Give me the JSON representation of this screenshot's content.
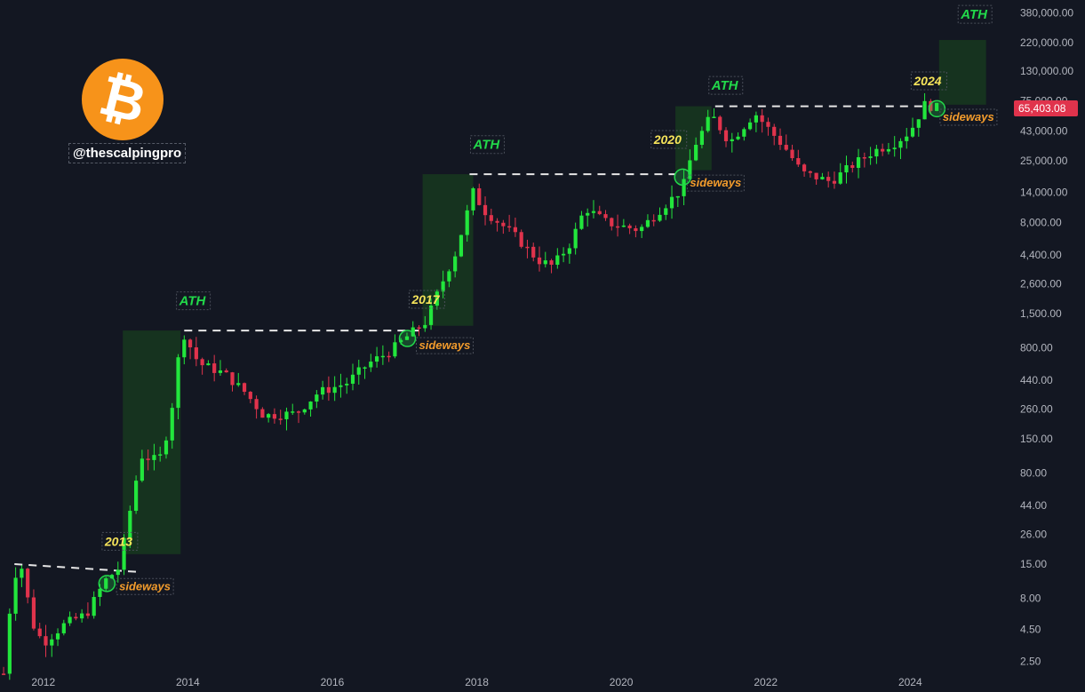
{
  "brand": {
    "handle": "@thescalpingpro",
    "logo_glyph": "₿",
    "logo_color": "#f7931a"
  },
  "colors": {
    "background": "#131722",
    "up": "#22e63c",
    "down": "#e0334c",
    "ath_zone": "#16331f",
    "year_label": "#f5e35a",
    "ath_label": "#22d84a",
    "sideways_label": "#f39c2c",
    "price_badge": "#e0334c"
  },
  "chart_data": {
    "type": "candlestick",
    "scale": "log",
    "x_range": [
      2011.4,
      2025.3
    ],
    "ylim": [
      1.6,
      480000
    ],
    "x_ticks": [
      {
        "value": 2012,
        "label": "2012"
      },
      {
        "value": 2014,
        "label": "2014"
      },
      {
        "value": 2016,
        "label": "2016"
      },
      {
        "value": 2018,
        "label": "2018"
      },
      {
        "value": 2020,
        "label": "2020"
      },
      {
        "value": 2022,
        "label": "2022"
      },
      {
        "value": 2024,
        "label": "2024"
      }
    ],
    "y_ticks": [
      {
        "value": 380000,
        "label": "380,000.00"
      },
      {
        "value": 220000,
        "label": "220,000.00"
      },
      {
        "value": 130000,
        "label": "130,000.00"
      },
      {
        "value": 75000,
        "label": "75,000.00"
      },
      {
        "value": 43000,
        "label": "43,000.00"
      },
      {
        "value": 25000,
        "label": "25,000.00"
      },
      {
        "value": 14000,
        "label": "14,000.00"
      },
      {
        "value": 8000,
        "label": "8,000.00"
      },
      {
        "value": 4400,
        "label": "4,400.00"
      },
      {
        "value": 2600,
        "label": "2,600.00"
      },
      {
        "value": 1500,
        "label": "1,500.00"
      },
      {
        "value": 800,
        "label": "800.00"
      },
      {
        "value": 440,
        "label": "440.00"
      },
      {
        "value": 260,
        "label": "260.00"
      },
      {
        "value": 150,
        "label": "150.00"
      },
      {
        "value": 80,
        "label": "80.00"
      },
      {
        "value": 44,
        "label": "44.00"
      },
      {
        "value": 26,
        "label": "26.00"
      },
      {
        "value": 15,
        "label": "15.00"
      },
      {
        "value": 8,
        "label": "8.00"
      },
      {
        "value": 4.5,
        "label": "4.50"
      },
      {
        "value": 2.5,
        "label": "2.50"
      }
    ],
    "last_price": {
      "value": 65403.08,
      "label": "65,403.08"
    },
    "anchors": [
      [
        2011.45,
        2.0
      ],
      [
        2011.58,
        12
      ],
      [
        2011.7,
        14
      ],
      [
        2011.85,
        5
      ],
      [
        2012.0,
        3.5
      ],
      [
        2012.3,
        5
      ],
      [
        2012.6,
        6
      ],
      [
        2012.85,
        11
      ],
      [
        2013.05,
        14
      ],
      [
        2013.2,
        40
      ],
      [
        2013.35,
        110
      ],
      [
        2013.6,
        100
      ],
      [
        2013.75,
        200
      ],
      [
        2013.92,
        1100
      ],
      [
        2014.15,
        600
      ],
      [
        2014.5,
        500
      ],
      [
        2014.8,
        350
      ],
      [
        2015.05,
        230
      ],
      [
        2015.5,
        240
      ],
      [
        2015.8,
        350
      ],
      [
        2016.2,
        420
      ],
      [
        2016.5,
        600
      ],
      [
        2016.8,
        750
      ],
      [
        2017.0,
        950
      ],
      [
        2017.3,
        1300
      ],
      [
        2017.5,
        2500
      ],
      [
        2017.7,
        4500
      ],
      [
        2017.95,
        14000
      ],
      [
        2018.1,
        10000
      ],
      [
        2018.5,
        6500
      ],
      [
        2018.85,
        4000
      ],
      [
        2019.05,
        3600
      ],
      [
        2019.3,
        5500
      ],
      [
        2019.5,
        10500
      ],
      [
        2019.8,
        8000
      ],
      [
        2020.0,
        7500
      ],
      [
        2020.25,
        7000
      ],
      [
        2020.6,
        11000
      ],
      [
        2020.85,
        15000
      ],
      [
        2021.0,
        32000
      ],
      [
        2021.25,
        58000
      ],
      [
        2021.5,
        35000
      ],
      [
        2021.85,
        60000
      ],
      [
        2022.05,
        44000
      ],
      [
        2022.3,
        30000
      ],
      [
        2022.5,
        20000
      ],
      [
        2022.9,
        17000
      ],
      [
        2023.2,
        23000
      ],
      [
        2023.5,
        30000
      ],
      [
        2023.8,
        35000
      ],
      [
        2024.0,
        43000
      ],
      [
        2024.2,
        70000
      ],
      [
        2024.4,
        65403
      ]
    ],
    "ath_lines": [
      {
        "from": [
          2011.6,
          15
        ],
        "to": [
          2013.3,
          13
        ]
      },
      {
        "from": [
          2013.95,
          1100
        ],
        "to": [
          2017.2,
          1100
        ]
      },
      {
        "from": [
          2017.9,
          19500
        ],
        "to": [
          2020.75,
          19500
        ]
      },
      {
        "from": [
          2021.3,
          68000
        ],
        "to": [
          2024.3,
          68000
        ]
      }
    ],
    "ath_zones": [
      {
        "x0": 2013.1,
        "x1": 2013.9,
        "y0": 18,
        "y1": 1100
      },
      {
        "x0": 2017.25,
        "x1": 2017.95,
        "y0": 1200,
        "y1": 19500
      },
      {
        "x0": 2020.75,
        "x1": 2021.25,
        "y0": 21000,
        "y1": 68000
      },
      {
        "x0": 2024.4,
        "x1": 2025.05,
        "y0": 70000,
        "y1": 230000
      }
    ],
    "year_labels": [
      {
        "text": "2013",
        "x": 2012.85,
        "y": 21
      },
      {
        "text": "2017",
        "x": 2017.1,
        "y": 1800
      },
      {
        "text": "2020",
        "x": 2020.45,
        "y": 34000
      },
      {
        "text": "2024",
        "x": 2024.05,
        "y": 100000
      }
    ],
    "ath_labels": [
      {
        "text": "ATH",
        "x": 2013.88,
        "y": 1750
      },
      {
        "text": "ATH",
        "x": 2017.95,
        "y": 31000
      },
      {
        "text": "ATH",
        "x": 2021.25,
        "y": 92000
      },
      {
        "text": "ATH",
        "x": 2024.7,
        "y": 340000
      }
    ],
    "sideways_markers": [
      {
        "text": "sideways",
        "cx": 2012.88,
        "cy": 10.5,
        "lx": 2013.05,
        "ly": 9.3
      },
      {
        "text": "sideways",
        "cx": 2017.04,
        "cy": 950,
        "lx": 2017.2,
        "ly": 780
      },
      {
        "text": "sideways",
        "cx": 2020.85,
        "cy": 18500,
        "lx": 2020.95,
        "ly": 15500
      },
      {
        "text": "sideways",
        "cx": 2024.37,
        "cy": 65000,
        "lx": 2024.45,
        "ly": 52000
      }
    ]
  }
}
